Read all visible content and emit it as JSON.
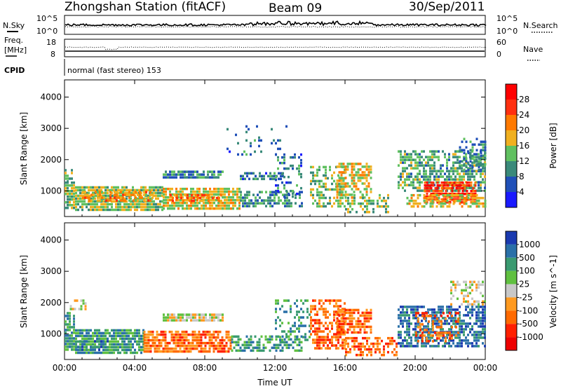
{
  "header": {
    "title": "Zhongshan Station (fitACF)",
    "beam": "Beam 09",
    "date": "30/Sep/2011"
  },
  "strips": {
    "nsky": {
      "label": "N.Sky",
      "tick_top": "10^5",
      "tick_bottom": "10^0"
    },
    "nsearch": {
      "label": "N.Search",
      "tick_top": "10^5",
      "tick_bottom": "10^0"
    },
    "freq": {
      "label_line1": "Freq.",
      "label_line2": "[MHz]",
      "tick_top": "18",
      "tick_bottom": "8"
    },
    "nave": {
      "label": "Nave",
      "tick_top": "60",
      "tick_bottom": "0"
    },
    "cpid": {
      "label": "CPID",
      "value": "normal (fast stereo) 153"
    }
  },
  "chart_data": [
    {
      "type": "heatmap",
      "name": "power",
      "ylabel": "Slant Range [km]",
      "xlabel": "",
      "x_tick_labels": [
        "00:00",
        "04:00",
        "08:00",
        "12:00",
        "16:00",
        "20:00",
        "00:00"
      ],
      "x_range_hours": [
        0,
        24
      ],
      "y_tick_labels": [
        "1000",
        "2000",
        "3000",
        "4000"
      ],
      "y_ticks": [
        1000,
        2000,
        3000,
        4000
      ],
      "ylim": [
        180,
        4550
      ],
      "colorbar": {
        "label": "Power [dB]",
        "tick_labels": [
          "4",
          "8",
          "12",
          "16",
          "20",
          "24",
          "28"
        ],
        "ticks": [
          4,
          8,
          12,
          16,
          20,
          24,
          28
        ],
        "range": [
          0,
          32
        ],
        "colors": [
          "#1a1aff",
          "#2050b8",
          "#3a8a7a",
          "#60c060",
          "#f0b020",
          "#ff7a00",
          "#ff3010",
          "#ff0000"
        ]
      },
      "regions": [
        {
          "t0": 0.0,
          "t1": 0.4,
          "r0": 1300,
          "r1": 1700,
          "v": 12,
          "d": 0.7
        },
        {
          "t0": 0.0,
          "t1": 0.6,
          "r0": 450,
          "r1": 1300,
          "v": 14,
          "d": 0.8
        },
        {
          "t0": 0.6,
          "t1": 5.6,
          "r0": 400,
          "r1": 1150,
          "v": 15,
          "d": 0.85
        },
        {
          "t0": 1.0,
          "t1": 5.0,
          "r0": 700,
          "r1": 1000,
          "v": 20,
          "d": 0.6
        },
        {
          "t0": 5.6,
          "t1": 10.0,
          "r0": 400,
          "r1": 1100,
          "v": 17,
          "d": 0.85
        },
        {
          "t0": 6.0,
          "t1": 9.0,
          "r0": 650,
          "r1": 900,
          "v": 23,
          "d": 0.5
        },
        {
          "t0": 5.6,
          "t1": 9.0,
          "r0": 1400,
          "r1": 1650,
          "v": 9,
          "d": 0.8
        },
        {
          "t0": 10.0,
          "t1": 13.5,
          "r0": 500,
          "r1": 1000,
          "v": 10,
          "d": 0.55
        },
        {
          "t0": 10.0,
          "t1": 12.5,
          "r0": 1350,
          "r1": 1600,
          "v": 8,
          "d": 0.6
        },
        {
          "t0": 12.0,
          "t1": 13.5,
          "r0": 800,
          "r1": 2200,
          "v": 8,
          "d": 0.3
        },
        {
          "t0": 14.0,
          "t1": 16.0,
          "r0": 500,
          "r1": 1800,
          "v": 13,
          "d": 0.5
        },
        {
          "t0": 15.5,
          "t1": 17.5,
          "r0": 800,
          "r1": 1900,
          "v": 18,
          "d": 0.55
        },
        {
          "t0": 16.0,
          "t1": 18.5,
          "r0": 300,
          "r1": 900,
          "v": 14,
          "d": 0.45
        },
        {
          "t0": 19.0,
          "t1": 24.0,
          "r0": 1000,
          "r1": 2300,
          "v": 12,
          "d": 0.6
        },
        {
          "t0": 20.5,
          "t1": 23.5,
          "r0": 600,
          "r1": 1300,
          "v": 26,
          "d": 0.8
        },
        {
          "t0": 19.5,
          "t1": 24.0,
          "r0": 500,
          "r1": 900,
          "v": 17,
          "d": 0.6
        },
        {
          "t0": 22.5,
          "t1": 24.0,
          "r0": 1700,
          "r1": 2700,
          "v": 9,
          "d": 0.45
        },
        {
          "t0": 9.0,
          "t1": 13.0,
          "r0": 2200,
          "r1": 3100,
          "v": 8,
          "d": 0.08
        }
      ]
    },
    {
      "type": "heatmap",
      "name": "velocity",
      "ylabel": "Slant Range [km]",
      "xlabel": "Time UT",
      "x_tick_labels": [
        "00:00",
        "04:00",
        "08:00",
        "12:00",
        "16:00",
        "20:00",
        "00:00"
      ],
      "x_range_hours": [
        0,
        24
      ],
      "y_tick_labels": [
        "1000",
        "2000",
        "3000",
        "4000"
      ],
      "y_ticks": [
        1000,
        2000,
        3000,
        4000
      ],
      "ylim": [
        180,
        4550
      ],
      "colorbar": {
        "label": "Velocity [m s^-1]",
        "tick_labels": [
          "1000",
          "500",
          "100",
          "25",
          "-25",
          "-100",
          "-500",
          "-1000"
        ],
        "colors": [
          "#1a3ab0",
          "#2a70a8",
          "#3a9a70",
          "#60c040",
          "#c8c8c8",
          "#ff9a20",
          "#ff6a00",
          "#ff2000",
          "#ee0000"
        ]
      },
      "regions": [
        {
          "t0": 0.0,
          "t1": 0.6,
          "r0": 500,
          "r1": 1700,
          "c": 2,
          "d": 0.8
        },
        {
          "t0": 0.6,
          "t1": 4.5,
          "r0": 400,
          "r1": 1150,
          "c": 2,
          "d": 0.85
        },
        {
          "t0": 0.6,
          "t1": 2.5,
          "r0": 450,
          "r1": 800,
          "c": 1,
          "d": 0.4
        },
        {
          "t0": 4.5,
          "t1": 9.5,
          "r0": 400,
          "r1": 1100,
          "c": 6,
          "d": 0.75
        },
        {
          "t0": 5.6,
          "t1": 9.0,
          "r0": 1450,
          "r1": 1650,
          "c": 4,
          "d": 0.85
        },
        {
          "t0": 9.5,
          "t1": 13.5,
          "r0": 500,
          "r1": 950,
          "c": 2,
          "d": 0.6
        },
        {
          "t0": 12.0,
          "t1": 14.0,
          "r0": 800,
          "r1": 2100,
          "c": 2,
          "d": 0.3
        },
        {
          "t0": 14.0,
          "t1": 16.0,
          "r0": 500,
          "r1": 2100,
          "c": 6,
          "d": 0.55
        },
        {
          "t0": 15.5,
          "t1": 17.5,
          "r0": 1000,
          "r1": 1800,
          "c": 6,
          "d": 0.7
        },
        {
          "t0": 16.0,
          "t1": 19.0,
          "r0": 300,
          "r1": 900,
          "c": 6,
          "d": 0.55
        },
        {
          "t0": 19.0,
          "t1": 24.0,
          "r0": 600,
          "r1": 1900,
          "c": 1,
          "d": 0.65
        },
        {
          "t0": 20.0,
          "t1": 22.5,
          "r0": 800,
          "r1": 1700,
          "c": 6,
          "d": 0.35
        },
        {
          "t0": 22.0,
          "t1": 24.0,
          "r0": 1900,
          "r1": 2700,
          "c": 4,
          "d": 0.45
        },
        {
          "t0": 0.3,
          "t1": 1.2,
          "r0": 1800,
          "r1": 2100,
          "c": 4,
          "d": 0.5
        }
      ]
    }
  ]
}
